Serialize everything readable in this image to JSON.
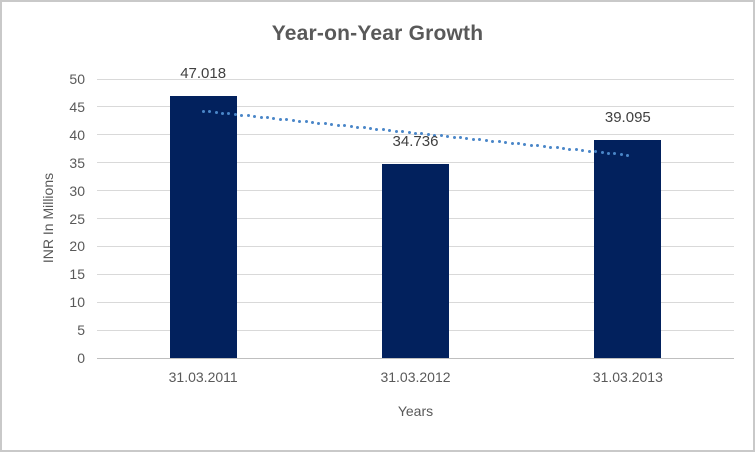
{
  "chart_data": {
    "type": "bar",
    "title": "Year-on-Year Growth",
    "categories": [
      "31.03.2011",
      "31.03.2012",
      "31.03.2013"
    ],
    "values": [
      47.018,
      34.736,
      39.095
    ],
    "data_labels": [
      "47.018",
      "34.736",
      "39.095"
    ],
    "xlabel": "Years",
    "ylabel": "INR In Millions",
    "ylim": [
      0,
      50
    ],
    "ytick_step": 5,
    "yticks": [
      0,
      5,
      10,
      15,
      20,
      25,
      30,
      35,
      40,
      45,
      50
    ],
    "grid": true,
    "legend": "none",
    "trendline": {
      "type": "linear",
      "style": "dotted",
      "start_value": 44.24,
      "end_value": 36.32
    }
  },
  "colors": {
    "bar": "#02215d",
    "trendline": "#4a86c8",
    "gridline": "#d9d9d9",
    "axis_line": "#bfbfbf",
    "title_text": "#595959",
    "tick_text": "#595959",
    "data_label_text": "#404040",
    "frame_border": "#c9c9c9",
    "background": "#ffffff"
  }
}
